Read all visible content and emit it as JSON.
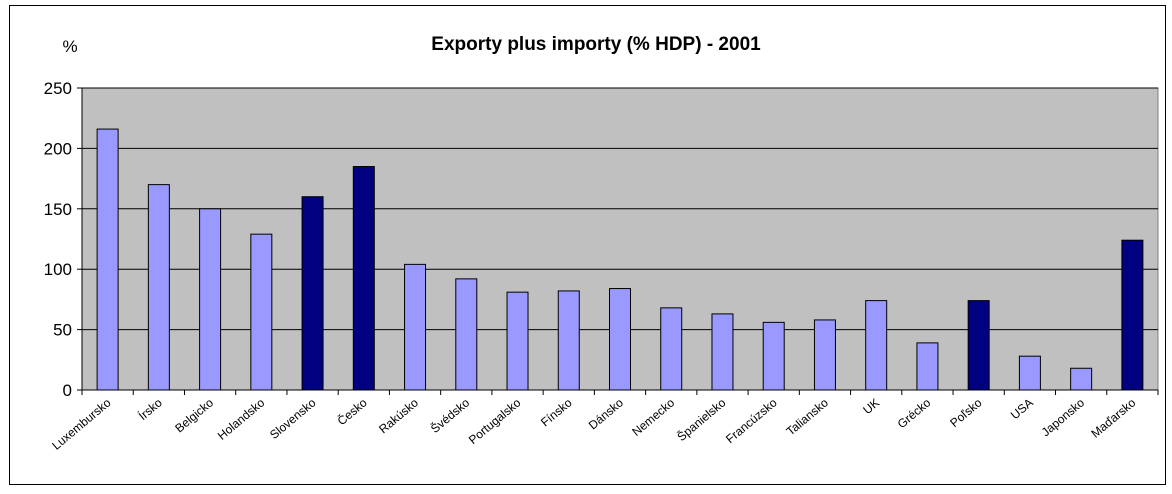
{
  "chart_data": {
    "type": "bar",
    "title": "Exporty plus importy (% HDP) - 2001",
    "ylabel": "%",
    "xlabel": "",
    "ylim": [
      0,
      250
    ],
    "yticks": [
      0,
      50,
      100,
      150,
      200,
      250
    ],
    "grid": true,
    "legend": "none",
    "categories": [
      "Luxembursko",
      "Írsko",
      "Belgicko",
      "Holandsko",
      "Slovensko",
      "Česko",
      "Rakúsko",
      "Švédsko",
      "Portugalsko",
      "Fínsko",
      "Dánsko",
      "Nemecko",
      "Španielsko",
      "Francúzsko",
      "Taliansko",
      "UK",
      "Grécko",
      "Poľsko",
      "USA",
      "Japonsko",
      "Maďarsko"
    ],
    "values": [
      216,
      170,
      150,
      129,
      160,
      185,
      104,
      92,
      81,
      82,
      84,
      68,
      63,
      56,
      58,
      74,
      39,
      74,
      28,
      18,
      124
    ],
    "highlighted": [
      false,
      false,
      false,
      false,
      true,
      true,
      false,
      false,
      false,
      false,
      false,
      false,
      false,
      false,
      false,
      false,
      false,
      true,
      false,
      false,
      true
    ],
    "colors": {
      "bar": "#9999ff",
      "bar_highlight": "#000080",
      "plot_background": "#c0c0c0",
      "gridline": "#000000"
    }
  }
}
